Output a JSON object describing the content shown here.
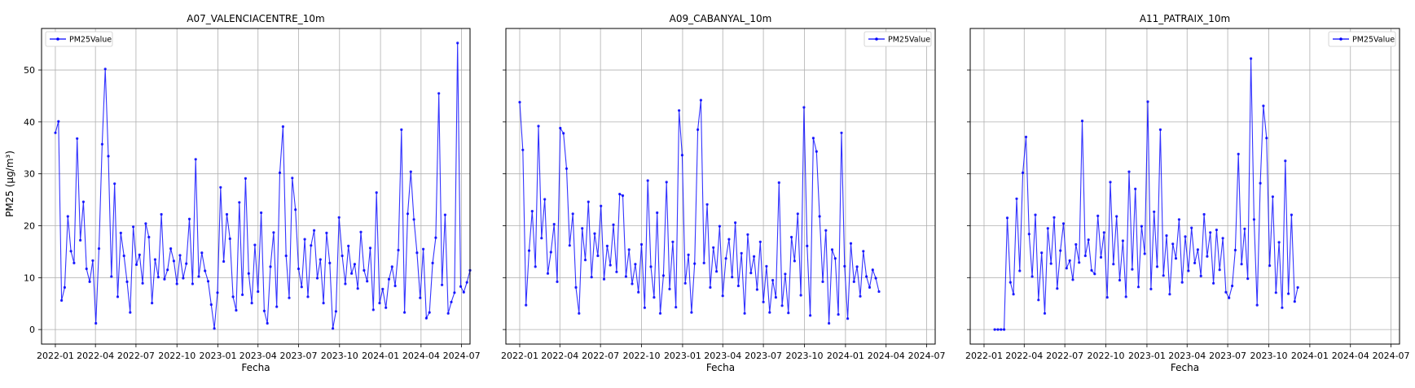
{
  "figure": {
    "shared_ylabel": "PM25 (µg/m³)"
  },
  "colors": {
    "series": "#0000ff",
    "grid": "#b0b0b0",
    "axes": "#000000"
  },
  "chart_data": [
    {
      "type": "line",
      "title": "A07_VALENCIACENTRE_10m",
      "xlabel": "Fecha",
      "ylabel": "PM25 (µg/m³)",
      "x_ticks": [
        "2022-01",
        "2022-04",
        "2022-07",
        "2022-10",
        "2023-01",
        "2023-04",
        "2023-07",
        "2023-10",
        "2024-01",
        "2024-04",
        "2024-07"
      ],
      "xlim": [
        "2021-12-01",
        "2024-07-20"
      ],
      "ylim": [
        -2.8,
        58
      ],
      "y_ticks": [
        0,
        10,
        20,
        30,
        40,
        50
      ],
      "grid": true,
      "legend": {
        "position": "upper left",
        "entries": [
          "PM25Value"
        ]
      },
      "series": [
        {
          "name": "PM25Value",
          "start": "2022-01-01",
          "step_days": 7,
          "values": [
            37.9,
            40.1,
            5.6,
            8.1,
            21.8,
            15.1,
            12.8,
            36.8,
            17.2,
            24.6,
            11.7,
            9.2,
            13.3,
            1.2,
            15.6,
            35.7,
            50.2,
            33.4,
            10.2,
            28.1,
            6.3,
            18.6,
            14.2,
            9.2,
            3.3,
            19.8,
            12.5,
            14.4,
            8.9,
            20.4,
            17.8,
            5.1,
            13.5,
            10.1,
            22.2,
            9.7,
            11.5,
            15.6,
            13.2,
            8.8,
            14.3,
            9.9,
            12.7,
            21.3,
            8.8,
            32.8,
            10.2,
            14.8,
            11.3,
            9.3,
            4.8,
            0.2,
            7.1,
            27.4,
            13.1,
            22.2,
            17.5,
            6.3,
            3.7,
            24.5,
            6.7,
            29.1,
            10.8,
            5.1,
            16.3,
            7.3,
            22.5,
            3.6,
            1.2,
            12.1,
            18.7,
            4.4,
            30.2,
            39.1,
            14.2,
            6.1,
            29.2,
            23.1,
            11.7,
            8.2,
            17.4,
            6.3,
            16.2,
            19.1,
            9.9,
            13.5,
            5.1,
            18.6,
            12.8,
            0.2,
            3.5,
            21.6,
            14.2,
            8.8,
            16.1,
            10.8,
            12.6,
            7.9,
            18.8,
            11.4,
            9.3,
            15.7,
            3.8,
            26.4,
            5.1,
            7.8,
            4.2,
            9.7,
            12.1,
            8.4,
            15.3,
            38.5,
            3.3,
            22.3,
            30.4,
            21.2,
            14.8,
            6.1,
            15.5,
            2.2,
            3.3,
            12.8,
            17.7,
            45.5,
            8.6,
            22.1,
            3.1,
            5.3,
            7.1,
            55.2,
            8.3,
            7.2,
            9.1,
            11.4
          ]
        }
      ]
    },
    {
      "type": "line",
      "title": "A09_CABANYAL_10m",
      "xlabel": "Fecha",
      "ylabel": "",
      "x_ticks": [
        "2022-01",
        "2022-04",
        "2022-07",
        "2022-10",
        "2023-01",
        "2023-04",
        "2023-07",
        "2023-10",
        "2024-01",
        "2024-04",
        "2024-07"
      ],
      "xlim": [
        "2021-12-01",
        "2024-07-20"
      ],
      "ylim": [
        -2.8,
        58
      ],
      "y_ticks": [
        0,
        10,
        20,
        30,
        40,
        50
      ],
      "grid": true,
      "legend": {
        "position": "upper right",
        "entries": [
          "PM25Value"
        ]
      },
      "series": [
        {
          "name": "PM25Value",
          "start": "2022-01-01",
          "step_days": 7,
          "values": [
            43.8,
            34.6,
            4.7,
            15.2,
            22.8,
            12.1,
            39.2,
            17.6,
            25.1,
            10.8,
            14.9,
            20.3,
            9.2,
            38.8,
            37.8,
            31.0,
            16.2,
            22.3,
            8.1,
            3.1,
            19.5,
            13.4,
            24.6,
            10.1,
            18.5,
            14.2,
            23.8,
            9.7,
            16.1,
            12.4,
            20.2,
            11.1,
            26.1,
            25.8,
            10.2,
            15.4,
            8.8,
            12.6,
            7.2,
            16.4,
            4.2,
            28.7,
            12.1,
            6.2,
            22.5,
            3.1,
            10.4,
            28.4,
            7.8,
            16.9,
            4.3,
            42.2,
            33.6,
            8.9,
            14.4,
            3.3,
            12.7,
            38.5,
            44.2,
            12.8,
            24.1,
            8.1,
            15.8,
            11.2,
            19.9,
            6.5,
            13.7,
            17.4,
            10.1,
            20.6,
            8.4,
            14.7,
            3.1,
            18.3,
            10.9,
            14.1,
            7.7,
            16.9,
            5.3,
            12.2,
            3.3,
            9.5,
            6.2,
            28.3,
            4.6,
            10.7,
            3.2,
            17.8,
            13.2,
            22.3,
            6.6,
            42.8,
            16.1,
            2.7,
            36.9,
            34.3,
            21.8,
            9.2,
            19.1,
            1.2,
            15.4,
            13.7,
            2.9,
            37.9,
            12.2,
            2.1,
            16.6,
            9.2,
            12.1,
            6.4,
            15.1,
            10.2,
            8.1,
            11.5,
            9.9,
            7.3
          ]
        }
      ]
    },
    {
      "type": "line",
      "title": "A11_PATRAIX_10m",
      "xlabel": "Fecha",
      "ylabel": "",
      "x_ticks": [
        "2022-01",
        "2022-04",
        "2022-07",
        "2022-10",
        "2023-01",
        "2023-04",
        "2023-07",
        "2023-10",
        "2024-01",
        "2024-04",
        "2024-07"
      ],
      "xlim": [
        "2021-12-01",
        "2024-07-20"
      ],
      "ylim": [
        -2.8,
        58
      ],
      "y_ticks": [
        0,
        10,
        20,
        30,
        40,
        50
      ],
      "grid": true,
      "legend": {
        "position": "upper right",
        "entries": [
          "PM25Value"
        ]
      },
      "series": [
        {
          "name": "PM25Value",
          "start": "2022-01-25",
          "step_days": 7,
          "values": [
            0.0,
            0.0,
            0.0,
            0.0,
            21.5,
            9.1,
            6.8,
            25.2,
            11.3,
            30.2,
            37.1,
            18.4,
            10.2,
            22.1,
            5.7,
            14.8,
            3.1,
            19.5,
            12.7,
            21.6,
            7.9,
            15.2,
            20.4,
            11.8,
            13.3,
            9.6,
            16.4,
            12.9,
            40.2,
            14.2,
            17.3,
            11.4,
            10.7,
            21.9,
            13.9,
            18.7,
            6.2,
            28.4,
            12.6,
            21.8,
            9.5,
            17.1,
            6.3,
            30.4,
            11.6,
            27.1,
            8.2,
            19.9,
            14.6,
            43.9,
            7.8,
            22.7,
            12.1,
            38.5,
            10.4,
            18.1,
            6.8,
            16.5,
            13.7,
            21.2,
            9.1,
            17.9,
            11.3,
            19.6,
            12.8,
            15.4,
            10.3,
            22.2,
            14.1,
            18.7,
            8.9,
            19.2,
            11.5,
            17.6,
            7.2,
            6.1,
            8.4,
            15.3,
            33.8,
            12.6,
            19.4,
            9.8,
            52.2,
            21.2,
            4.7,
            28.2,
            43.1,
            36.9,
            12.3,
            25.6,
            7.1,
            16.8,
            4.2,
            32.5,
            6.9,
            22.1,
            5.4,
            8.1
          ]
        }
      ]
    }
  ]
}
